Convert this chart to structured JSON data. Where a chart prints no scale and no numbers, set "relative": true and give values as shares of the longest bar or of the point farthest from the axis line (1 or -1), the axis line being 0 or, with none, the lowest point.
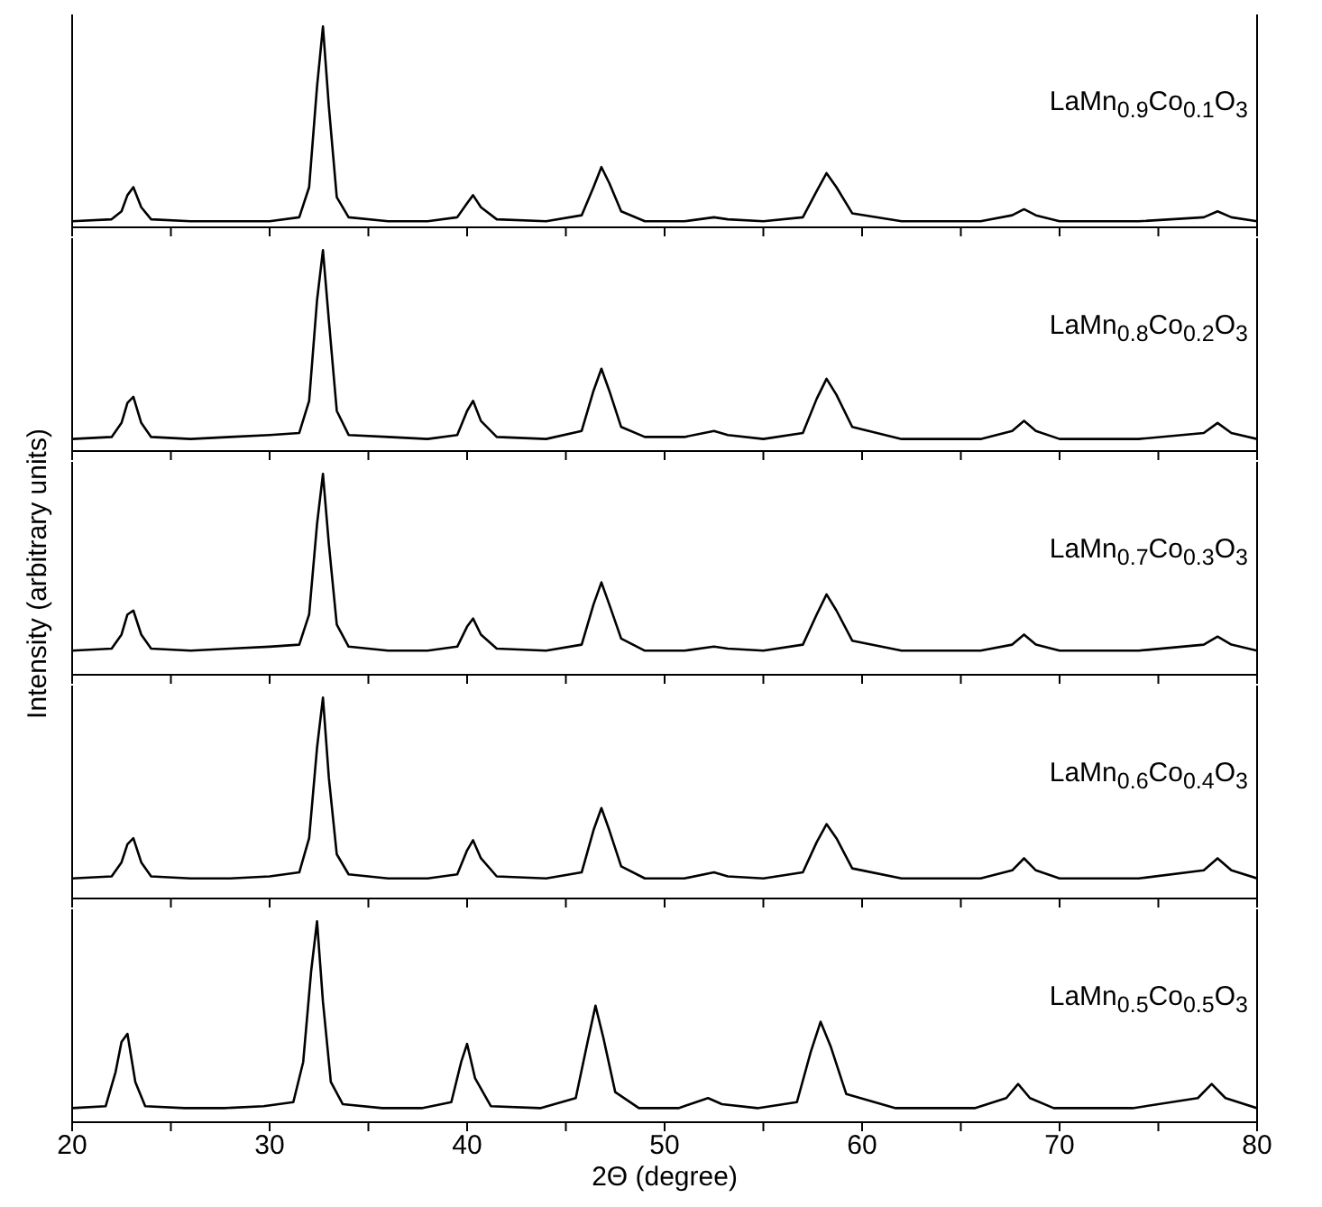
{
  "chart_data": [
    {
      "type": "line",
      "relative": true,
      "tick_labels": false,
      "annotations": [
        "LaMn$_{0.9}$Co$_{0.1}$O$_{3}$"
      ],
      "xlim": [
        20,
        80
      ],
      "xticks": [
        20,
        {
          "value": 25,
          "label": null
        },
        30,
        {
          "value": 35,
          "label": null
        },
        40,
        {
          "value": 45,
          "label": null
        },
        50,
        {
          "value": 55,
          "label": null
        },
        60,
        {
          "value": 65,
          "label": null
        },
        70,
        {
          "value": 75,
          "label": null
        },
        80
      ],
      "x": [
        20,
        22,
        22.5,
        22.8,
        23.1,
        23.5,
        24,
        26,
        28,
        30,
        31.5,
        32.0,
        32.4,
        32.7,
        33.0,
        33.4,
        34,
        36,
        38,
        39.5,
        40.0,
        40.3,
        40.7,
        41.5,
        44,
        45.8,
        46.4,
        46.8,
        47.2,
        47.8,
        49,
        51,
        52.5,
        53.2,
        55,
        57,
        57.7,
        58.2,
        58.7,
        59.5,
        62,
        66,
        67.6,
        68.2,
        68.8,
        70,
        74,
        77.3,
        78,
        78.7,
        80
      ],
      "series": [
        {
          "color": "#000000",
          "values": [
            0.03,
            0.04,
            0.08,
            0.16,
            0.2,
            0.1,
            0.04,
            0.03,
            0.03,
            0.03,
            0.05,
            0.2,
            0.7,
            1,
            0.6,
            0.15,
            0.05,
            0.03,
            0.03,
            0.05,
            0.12,
            0.16,
            0.1,
            0.04,
            0.03,
            0.06,
            0.2,
            0.3,
            0.22,
            0.08,
            0.03,
            0.03,
            0.05,
            0.04,
            0.03,
            0.05,
            0.18,
            0.27,
            0.2,
            0.07,
            0.03,
            0.03,
            0.06,
            0.09,
            0.06,
            0.03,
            0.03,
            0.05,
            0.08,
            0.05,
            0.03
          ]
        }
      ]
    },
    {
      "type": "line",
      "relative": true,
      "tick_labels": false,
      "annotations": [
        "LaMn$_{0.8}$Co$_{0.2}$O$_{3}$"
      ],
      "xlim": [
        20,
        80
      ],
      "xticks": [
        20,
        {
          "value": 25,
          "label": null
        },
        30,
        {
          "value": 35,
          "label": null
        },
        40,
        {
          "value": 45,
          "label": null
        },
        50,
        {
          "value": 55,
          "label": null
        },
        60,
        {
          "value": 65,
          "label": null
        },
        70,
        {
          "value": 75,
          "label": null
        },
        80
      ],
      "x": [
        20,
        22,
        22.5,
        22.8,
        23.1,
        23.5,
        24,
        26,
        28,
        30,
        31.5,
        32.0,
        32.4,
        32.7,
        33.0,
        33.4,
        34,
        36,
        38,
        39.5,
        40.0,
        40.3,
        40.7,
        41.5,
        44,
        45.8,
        46.4,
        46.8,
        47.2,
        47.8,
        49,
        51,
        52.5,
        53.2,
        55,
        57,
        57.7,
        58.2,
        58.7,
        59.5,
        62,
        66,
        67.6,
        68.2,
        68.8,
        70,
        74,
        77.3,
        78,
        78.7,
        80
      ],
      "series": [
        {
          "color": "#000000",
          "values": [
            0.06,
            0.07,
            0.14,
            0.24,
            0.27,
            0.14,
            0.07,
            0.06,
            0.07,
            0.08,
            0.09,
            0.25,
            0.75,
            1,
            0.65,
            0.2,
            0.08,
            0.07,
            0.06,
            0.08,
            0.2,
            0.25,
            0.15,
            0.07,
            0.06,
            0.1,
            0.3,
            0.41,
            0.3,
            0.12,
            0.07,
            0.07,
            0.1,
            0.08,
            0.06,
            0.09,
            0.26,
            0.36,
            0.28,
            0.12,
            0.06,
            0.06,
            0.1,
            0.15,
            0.1,
            0.06,
            0.06,
            0.09,
            0.14,
            0.09,
            0.06
          ]
        }
      ]
    },
    {
      "type": "line",
      "relative": true,
      "tick_labels": false,
      "ylabel": "Intensity (arbitrary units)",
      "annotations": [
        "LaMn$_{0.7}$Co$_{0.3}$O$_{3}$"
      ],
      "xlim": [
        20,
        80
      ],
      "xticks": [
        20,
        {
          "value": 25,
          "label": null
        },
        30,
        {
          "value": 35,
          "label": null
        },
        40,
        {
          "value": 45,
          "label": null
        },
        50,
        {
          "value": 55,
          "label": null
        },
        60,
        {
          "value": 65,
          "label": null
        },
        70,
        {
          "value": 75,
          "label": null
        },
        80
      ],
      "x": [
        20,
        22,
        22.5,
        22.8,
        23.1,
        23.5,
        24,
        26,
        28,
        30,
        31.5,
        32.0,
        32.4,
        32.7,
        33.0,
        33.4,
        34,
        36,
        38,
        39.5,
        40.0,
        40.3,
        40.7,
        41.5,
        44,
        45.8,
        46.4,
        46.8,
        47.2,
        47.8,
        49,
        51,
        52.5,
        53.2,
        55,
        57,
        57.7,
        58.2,
        58.7,
        59.5,
        62,
        66,
        67.6,
        68.2,
        68.8,
        70,
        74,
        77.3,
        78,
        78.7,
        80
      ],
      "series": [
        {
          "color": "#000000",
          "values": [
            0.12,
            0.13,
            0.2,
            0.3,
            0.32,
            0.2,
            0.13,
            0.12,
            0.13,
            0.14,
            0.15,
            0.3,
            0.75,
            1,
            0.65,
            0.25,
            0.14,
            0.12,
            0.12,
            0.14,
            0.24,
            0.28,
            0.2,
            0.13,
            0.12,
            0.15,
            0.35,
            0.46,
            0.35,
            0.18,
            0.12,
            0.12,
            0.14,
            0.13,
            0.12,
            0.15,
            0.3,
            0.4,
            0.32,
            0.17,
            0.12,
            0.12,
            0.15,
            0.2,
            0.15,
            0.12,
            0.12,
            0.15,
            0.19,
            0.15,
            0.12
          ]
        }
      ]
    },
    {
      "type": "line",
      "relative": true,
      "tick_labels": false,
      "annotations": [
        "LaMn$_{0.6}$Co$_{0.4}$O$_{3}$"
      ],
      "xlim": [
        20,
        80
      ],
      "xticks": [
        20,
        {
          "value": 25,
          "label": null
        },
        30,
        {
          "value": 35,
          "label": null
        },
        40,
        {
          "value": 45,
          "label": null
        },
        50,
        {
          "value": 55,
          "label": null
        },
        60,
        {
          "value": 65,
          "label": null
        },
        70,
        {
          "value": 75,
          "label": null
        },
        80
      ],
      "x": [
        20,
        22,
        22.5,
        22.8,
        23.1,
        23.5,
        24,
        26,
        28,
        30,
        31.5,
        32.0,
        32.4,
        32.7,
        33.0,
        33.4,
        34,
        36,
        38,
        39.5,
        40.0,
        40.3,
        40.7,
        41.5,
        44,
        45.8,
        46.4,
        46.8,
        47.2,
        47.8,
        49,
        51,
        52.5,
        53.2,
        55,
        57,
        57.7,
        58.2,
        58.7,
        59.5,
        62,
        66,
        67.6,
        68.2,
        68.8,
        70,
        74,
        77.3,
        78,
        78.7,
        80
      ],
      "series": [
        {
          "color": "#000000",
          "values": [
            0.1,
            0.11,
            0.18,
            0.27,
            0.3,
            0.18,
            0.11,
            0.1,
            0.1,
            0.11,
            0.13,
            0.3,
            0.75,
            1,
            0.6,
            0.22,
            0.12,
            0.1,
            0.1,
            0.12,
            0.24,
            0.29,
            0.2,
            0.11,
            0.1,
            0.13,
            0.34,
            0.45,
            0.34,
            0.16,
            0.1,
            0.1,
            0.13,
            0.11,
            0.1,
            0.13,
            0.28,
            0.37,
            0.3,
            0.15,
            0.1,
            0.1,
            0.14,
            0.2,
            0.14,
            0.1,
            0.1,
            0.14,
            0.2,
            0.14,
            0.1
          ]
        }
      ]
    },
    {
      "type": "line",
      "relative": true,
      "tick_labels": "x",
      "xlabel": "2Θ  (degree)",
      "annotations": [
        "LaMn$_{0.5}$Co$_{0.5}$O$_{3}$"
      ],
      "xlim": [
        20,
        80
      ],
      "xticks": [
        20,
        {
          "value": 25,
          "label": null
        },
        30,
        {
          "value": 35,
          "label": null
        },
        40,
        {
          "value": 45,
          "label": null
        },
        50,
        {
          "value": 55,
          "label": null
        },
        60,
        {
          "value": 65,
          "label": null
        },
        70,
        {
          "value": 75,
          "label": null
        },
        80
      ],
      "x": [
        20,
        21.7,
        22.2,
        22.5,
        22.8,
        23.2,
        23.7,
        25.7,
        27.7,
        29.7,
        31.2,
        31.7,
        32.1,
        32.4,
        32.7,
        33.1,
        33.7,
        35.7,
        37.7,
        39.2,
        39.7,
        40.0,
        40.4,
        41.2,
        43.7,
        45.5,
        46.1,
        46.5,
        46.9,
        47.5,
        48.7,
        50.7,
        52.2,
        52.9,
        54.7,
        56.7,
        57.4,
        57.9,
        58.4,
        59.2,
        61.7,
        65.7,
        67.3,
        67.9,
        68.5,
        69.7,
        73.7,
        77.0,
        77.7,
        78.4,
        80
      ],
      "series": [
        {
          "color": "#000000",
          "values": [
            0.07,
            0.08,
            0.25,
            0.4,
            0.44,
            0.2,
            0.08,
            0.07,
            0.07,
            0.08,
            0.1,
            0.3,
            0.75,
            1,
            0.6,
            0.2,
            0.09,
            0.07,
            0.07,
            0.1,
            0.3,
            0.39,
            0.22,
            0.08,
            0.07,
            0.12,
            0.4,
            0.58,
            0.42,
            0.15,
            0.07,
            0.07,
            0.12,
            0.09,
            0.07,
            0.1,
            0.35,
            0.5,
            0.38,
            0.14,
            0.07,
            0.07,
            0.12,
            0.19,
            0.12,
            0.07,
            0.07,
            0.12,
            0.19,
            0.12,
            0.07
          ]
        }
      ]
    }
  ]
}
